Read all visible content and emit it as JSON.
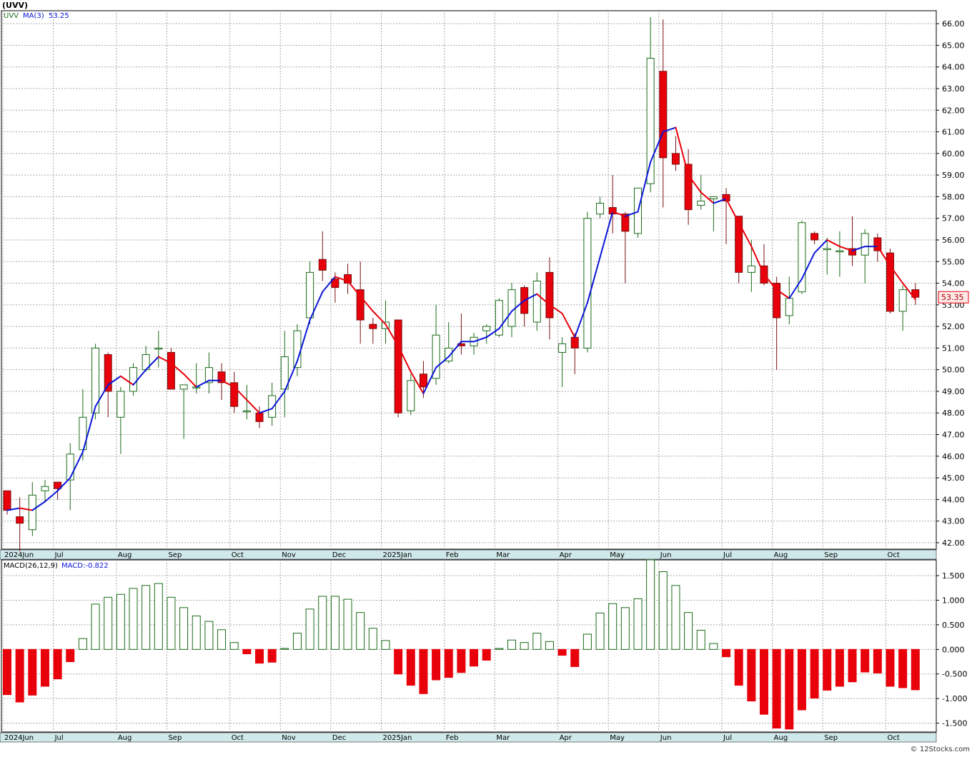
{
  "header": {
    "symbol": "(UVV)"
  },
  "chart_data": [
    {
      "type": "candlestick",
      "legend": {
        "symbol": "UVV",
        "ma_label": "MA(3)",
        "ma_value": "53.25"
      },
      "last_price_label": "53.35",
      "ylim": [
        41.7,
        66.6
      ],
      "y_ticks": [
        "66.00",
        "65.00",
        "64.00",
        "63.00",
        "62.00",
        "61.00",
        "60.00",
        "59.00",
        "58.00",
        "57.00",
        "56.00",
        "55.00",
        "54.00",
        "53.00",
        "52.00",
        "51.00",
        "50.00",
        "49.00",
        "48.00",
        "47.00",
        "46.00",
        "45.00",
        "44.00",
        "43.00",
        "42.00"
      ],
      "candles": [
        {
          "o": 44.4,
          "h": 44.4,
          "l": 43.3,
          "c": 43.5
        },
        {
          "o": 43.2,
          "h": 44.1,
          "l": 41.6,
          "c": 42.9
        },
        {
          "o": 42.6,
          "h": 44.8,
          "l": 42.3,
          "c": 44.2
        },
        {
          "o": 44.4,
          "h": 44.9,
          "l": 43.9,
          "c": 44.6
        },
        {
          "o": 44.8,
          "h": 44.8,
          "l": 44.0,
          "c": 44.5
        },
        {
          "o": 44.9,
          "h": 46.6,
          "l": 43.5,
          "c": 46.1
        },
        {
          "o": 46.3,
          "h": 49.1,
          "l": 45.8,
          "c": 47.8
        },
        {
          "o": 48.0,
          "h": 51.2,
          "l": 47.7,
          "c": 51.0
        },
        {
          "o": 50.7,
          "h": 50.8,
          "l": 47.8,
          "c": 49.0
        },
        {
          "o": 47.8,
          "h": 49.2,
          "l": 46.1,
          "c": 49.0
        },
        {
          "o": 49.0,
          "h": 50.3,
          "l": 48.8,
          "c": 50.1
        },
        {
          "o": 50.0,
          "h": 51.1,
          "l": 49.9,
          "c": 50.7
        },
        {
          "o": 51.0,
          "h": 51.8,
          "l": 50.1,
          "c": 51.0
        },
        {
          "o": 50.8,
          "h": 51.0,
          "l": 49.1,
          "c": 49.1
        },
        {
          "o": 49.1,
          "h": 49.3,
          "l": 46.8,
          "c": 49.3
        },
        {
          "o": 49.2,
          "h": 50.3,
          "l": 48.9,
          "c": 49.2
        },
        {
          "o": 49.4,
          "h": 50.8,
          "l": 48.9,
          "c": 50.1
        },
        {
          "o": 49.9,
          "h": 50.3,
          "l": 48.6,
          "c": 49.4
        },
        {
          "o": 49.4,
          "h": 49.9,
          "l": 48.0,
          "c": 48.3
        },
        {
          "o": 48.1,
          "h": 49.3,
          "l": 47.7,
          "c": 48.1
        },
        {
          "o": 48.0,
          "h": 48.3,
          "l": 47.3,
          "c": 47.6
        },
        {
          "o": 47.8,
          "h": 49.4,
          "l": 47.4,
          "c": 48.8
        },
        {
          "o": 49.1,
          "h": 51.8,
          "l": 47.8,
          "c": 50.6
        },
        {
          "o": 50.1,
          "h": 52.1,
          "l": 49.7,
          "c": 51.8
        },
        {
          "o": 52.4,
          "h": 55.0,
          "l": 52.1,
          "c": 54.5
        },
        {
          "o": 55.1,
          "h": 56.4,
          "l": 54.1,
          "c": 54.6
        },
        {
          "o": 54.2,
          "h": 54.5,
          "l": 53.1,
          "c": 53.8
        },
        {
          "o": 54.4,
          "h": 54.9,
          "l": 53.5,
          "c": 54.0
        },
        {
          "o": 53.7,
          "h": 55.0,
          "l": 51.2,
          "c": 52.3
        },
        {
          "o": 52.1,
          "h": 52.4,
          "l": 51.2,
          "c": 51.9
        },
        {
          "o": 51.9,
          "h": 53.2,
          "l": 51.2,
          "c": 52.2
        },
        {
          "o": 52.3,
          "h": 52.3,
          "l": 47.8,
          "c": 48.0
        },
        {
          "o": 48.1,
          "h": 49.8,
          "l": 47.9,
          "c": 49.5
        },
        {
          "o": 49.8,
          "h": 50.4,
          "l": 48.7,
          "c": 49.2
        },
        {
          "o": 49.6,
          "h": 53.0,
          "l": 49.3,
          "c": 51.6
        },
        {
          "o": 50.4,
          "h": 52.2,
          "l": 50.3,
          "c": 51.0
        },
        {
          "o": 51.2,
          "h": 52.6,
          "l": 50.7,
          "c": 51.1
        },
        {
          "o": 51.1,
          "h": 51.7,
          "l": 50.7,
          "c": 51.5
        },
        {
          "o": 51.8,
          "h": 52.1,
          "l": 51.2,
          "c": 52.0
        },
        {
          "o": 51.6,
          "h": 53.3,
          "l": 51.5,
          "c": 53.2
        },
        {
          "o": 52.0,
          "h": 54.0,
          "l": 51.5,
          "c": 53.7
        },
        {
          "o": 53.8,
          "h": 53.9,
          "l": 52.0,
          "c": 52.6
        },
        {
          "o": 52.2,
          "h": 54.5,
          "l": 51.8,
          "c": 54.1
        },
        {
          "o": 54.5,
          "h": 55.2,
          "l": 51.4,
          "c": 52.4
        },
        {
          "o": 50.8,
          "h": 51.5,
          "l": 49.2,
          "c": 51.2
        },
        {
          "o": 51.5,
          "h": 51.7,
          "l": 49.8,
          "c": 51.0
        },
        {
          "o": 51.0,
          "h": 57.3,
          "l": 50.8,
          "c": 57.0
        },
        {
          "o": 57.2,
          "h": 58.0,
          "l": 57.0,
          "c": 57.7
        },
        {
          "o": 57.5,
          "h": 59.0,
          "l": 56.3,
          "c": 57.2
        },
        {
          "o": 57.2,
          "h": 57.3,
          "l": 54.0,
          "c": 56.4
        },
        {
          "o": 56.3,
          "h": 58.4,
          "l": 56.1,
          "c": 58.4
        },
        {
          "o": 58.6,
          "h": 66.3,
          "l": 58.2,
          "c": 64.4
        },
        {
          "o": 63.8,
          "h": 66.2,
          "l": 57.5,
          "c": 59.8
        },
        {
          "o": 60.0,
          "h": 60.8,
          "l": 59.2,
          "c": 59.5
        },
        {
          "o": 59.5,
          "h": 60.2,
          "l": 56.7,
          "c": 57.4
        },
        {
          "o": 57.6,
          "h": 59.0,
          "l": 57.4,
          "c": 57.8
        },
        {
          "o": 57.9,
          "h": 58.0,
          "l": 56.4,
          "c": 58.0
        },
        {
          "o": 58.1,
          "h": 58.4,
          "l": 55.8,
          "c": 57.8
        },
        {
          "o": 57.1,
          "h": 57.1,
          "l": 54.0,
          "c": 54.5
        },
        {
          "o": 54.5,
          "h": 56.0,
          "l": 53.6,
          "c": 54.8
        },
        {
          "o": 54.8,
          "h": 55.8,
          "l": 53.9,
          "c": 54.0
        },
        {
          "o": 54.0,
          "h": 54.3,
          "l": 50.0,
          "c": 52.4
        },
        {
          "o": 52.5,
          "h": 54.3,
          "l": 52.1,
          "c": 53.3
        },
        {
          "o": 53.6,
          "h": 56.9,
          "l": 53.5,
          "c": 56.8
        },
        {
          "o": 56.3,
          "h": 56.4,
          "l": 55.8,
          "c": 56.0
        },
        {
          "o": 55.6,
          "h": 56.1,
          "l": 54.4,
          "c": 55.6
        },
        {
          "o": 55.5,
          "h": 56.4,
          "l": 54.3,
          "c": 55.5
        },
        {
          "o": 55.6,
          "h": 57.1,
          "l": 54.8,
          "c": 55.3
        },
        {
          "o": 55.3,
          "h": 56.5,
          "l": 54.0,
          "c": 56.3
        },
        {
          "o": 56.1,
          "h": 56.3,
          "l": 55.0,
          "c": 55.5
        },
        {
          "o": 55.4,
          "h": 55.6,
          "l": 52.6,
          "c": 52.7
        },
        {
          "o": 52.7,
          "h": 53.9,
          "l": 51.8,
          "c": 53.7
        },
        {
          "o": 53.7,
          "h": 54.0,
          "l": 53.0,
          "c": 53.35
        }
      ],
      "ma3": [
        43.5,
        43.6,
        43.5,
        43.9,
        44.4,
        45.0,
        46.2,
        48.3,
        49.3,
        49.7,
        49.3,
        50.0,
        50.6,
        50.3,
        49.8,
        49.2,
        49.5,
        49.5,
        49.2,
        48.6,
        48.0,
        48.2,
        49.0,
        50.4,
        52.3,
        53.6,
        54.3,
        54.1,
        53.4,
        52.7,
        52.1,
        51.1,
        49.9,
        48.9,
        50.1,
        50.6,
        51.3,
        51.3,
        51.5,
        51.9,
        52.7,
        53.2,
        53.5,
        53.0,
        52.6,
        51.5,
        53.1,
        55.2,
        57.3,
        57.1,
        57.3,
        59.6,
        61.0,
        61.2,
        59.0,
        58.2,
        57.7,
        57.9,
        56.8,
        55.7,
        54.4,
        53.7,
        53.3,
        54.2,
        55.4,
        56.0,
        55.7,
        55.5,
        55.7,
        55.7,
        54.8,
        54.0,
        53.25
      ],
      "x_labels": [
        "2024Jun",
        "Jul",
        "Aug",
        "Sep",
        "Oct",
        "Nov",
        "Dec",
        "2025Jan",
        "Feb",
        "Mar",
        "Apr",
        "May",
        "Jun",
        "Jul",
        "Aug",
        "Sep",
        "Oct"
      ],
      "x_label_index": [
        0,
        4,
        9,
        13,
        18,
        22,
        26,
        30,
        35,
        39,
        44,
        48,
        52,
        57,
        61,
        65,
        70
      ]
    },
    {
      "type": "bar",
      "legend": {
        "label": "MACD(26,12,9)",
        "value_label": "MACD:-0.822"
      },
      "ylim": [
        -1.68,
        1.82
      ],
      "y_ticks": [
        "1.500",
        "1.000",
        "0.500",
        "0.000",
        "-0.500",
        "-1.000",
        "-1.500"
      ],
      "values": [
        -0.92,
        -1.07,
        -0.93,
        -0.75,
        -0.6,
        -0.25,
        0.22,
        0.92,
        1.06,
        1.12,
        1.24,
        1.3,
        1.34,
        1.06,
        0.85,
        0.68,
        0.57,
        0.4,
        0.14,
        -0.09,
        -0.28,
        -0.26,
        0.02,
        0.33,
        0.82,
        1.08,
        1.08,
        1.02,
        0.75,
        0.43,
        0.18,
        -0.5,
        -0.73,
        -0.9,
        -0.62,
        -0.57,
        -0.47,
        -0.34,
        -0.22,
        0.02,
        0.19,
        0.14,
        0.33,
        0.16,
        -0.12,
        -0.35,
        0.31,
        0.74,
        0.93,
        0.85,
        1.03,
        1.82,
        1.58,
        1.3,
        0.75,
        0.39,
        0.12,
        -0.15,
        -0.73,
        -1.05,
        -1.32,
        -1.6,
        -1.62,
        -1.23,
        -0.99,
        -0.83,
        -0.75,
        -0.66,
        -0.46,
        -0.48,
        -0.75,
        -0.78,
        -0.822
      ],
      "x_labels": [
        "2024Jun",
        "Jul",
        "Aug",
        "Sep",
        "Oct",
        "Nov",
        "Dec",
        "2025Jan",
        "Feb",
        "Mar",
        "Apr",
        "May",
        "Jun",
        "Jul",
        "Aug",
        "Sep",
        "Oct"
      ],
      "x_label_index": [
        0,
        4,
        9,
        13,
        18,
        22,
        26,
        30,
        35,
        39,
        44,
        48,
        52,
        57,
        61,
        65,
        70
      ]
    }
  ],
  "footer": {
    "credit": "© 12Stocks.com"
  },
  "colors": {
    "up": "#1a6b1a",
    "down": "#e8000a",
    "down_wick": "#7a1010",
    "ma_up": "#0b16d8",
    "ma_down": "#e8000a",
    "grid": "#a8a8a8",
    "axis_band": "#cfe8ea",
    "legend_symbol": "#1a6b1a",
    "legend_ma": "#0b16d8"
  }
}
